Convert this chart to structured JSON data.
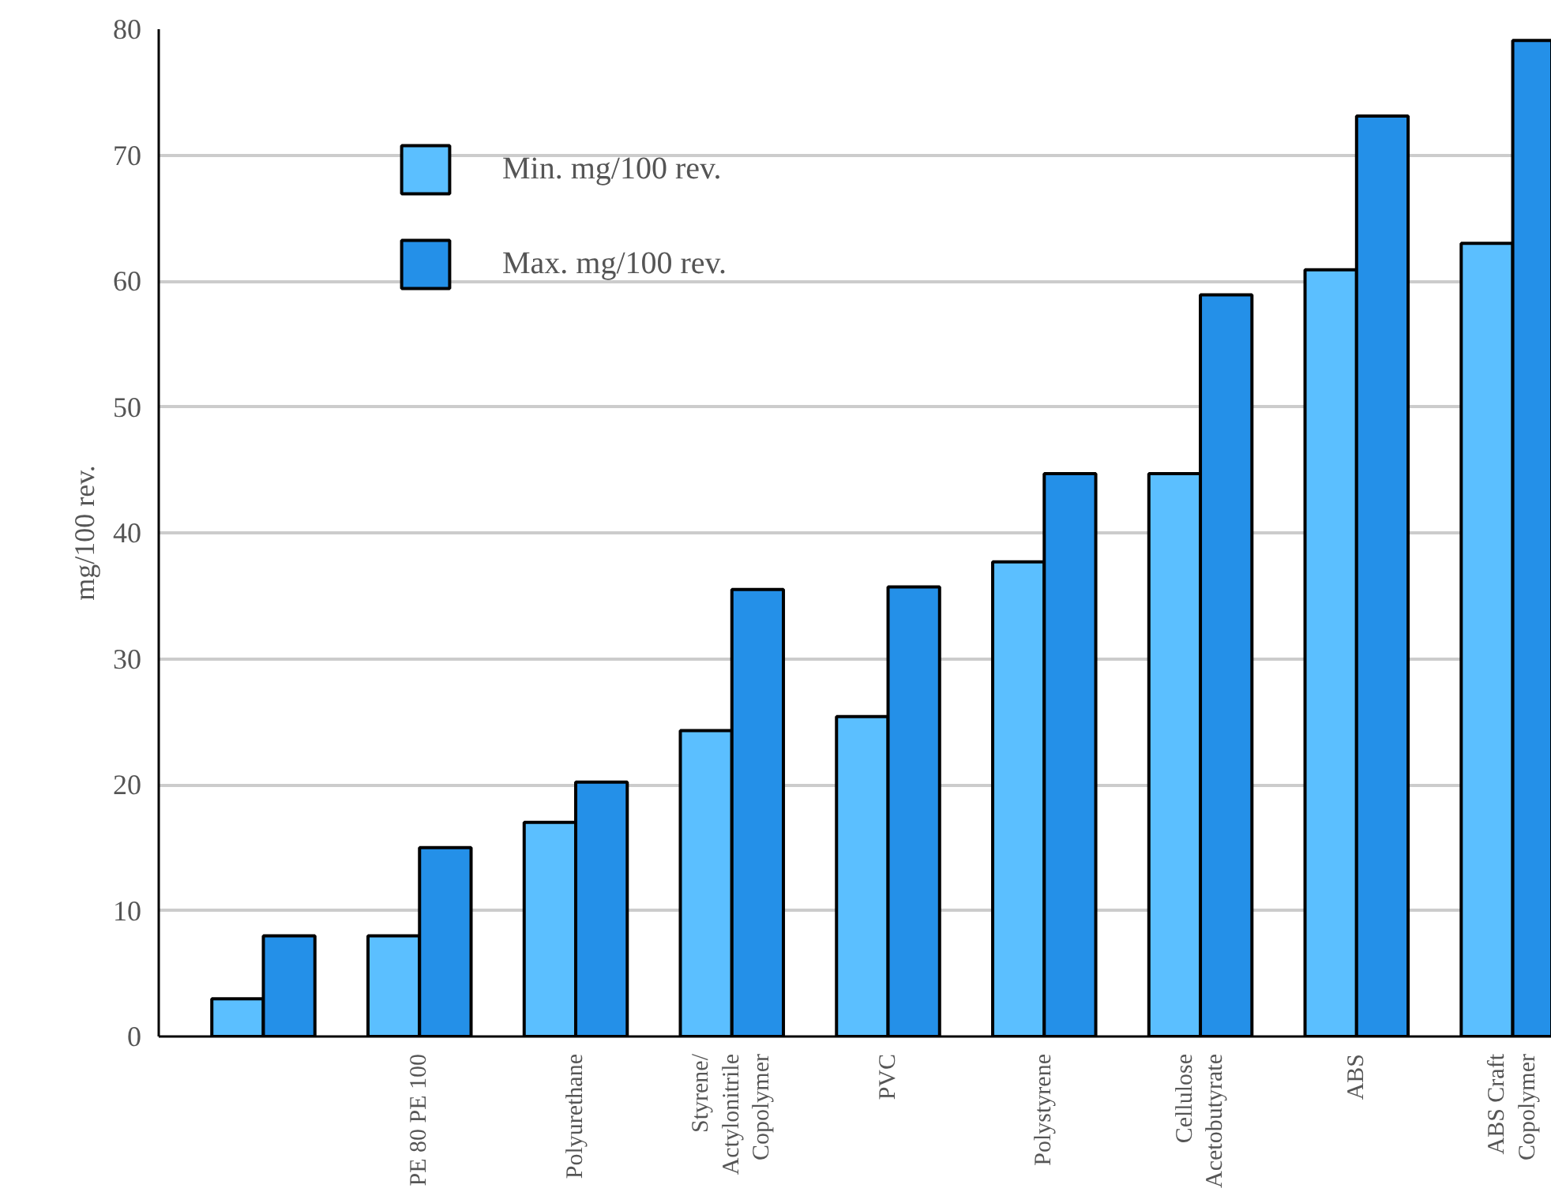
{
  "chart_data": {
    "type": "bar",
    "ylabel": "mg/100 rev.",
    "categories": [
      null,
      "PE 80 PE 100",
      "Polyurethane",
      "Styrene/\nActylonitrile\nCopolymer",
      "PVC",
      "Polystyrene",
      "Cellulose\nAcetobutyrate",
      "ABS",
      "ABS Craft\nCopolymer"
    ],
    "series": [
      {
        "name": "Min. mg/100 rev.",
        "color": "#5bbfff",
        "values": [
          3,
          8,
          17,
          24.3,
          25.4,
          37.7,
          44.7,
          60.9,
          63
        ]
      },
      {
        "name": "Max. mg/100 rev.",
        "color": "#2490e8",
        "values": [
          8,
          15,
          20.2,
          35.5,
          35.7,
          44.7,
          58.9,
          73.1,
          79.1
        ]
      }
    ],
    "ylim": [
      0,
      80
    ],
    "yticks": [
      0,
      10,
      20,
      30,
      40,
      50,
      60,
      70,
      80
    ],
    "grid": "y",
    "legend": "top left"
  }
}
